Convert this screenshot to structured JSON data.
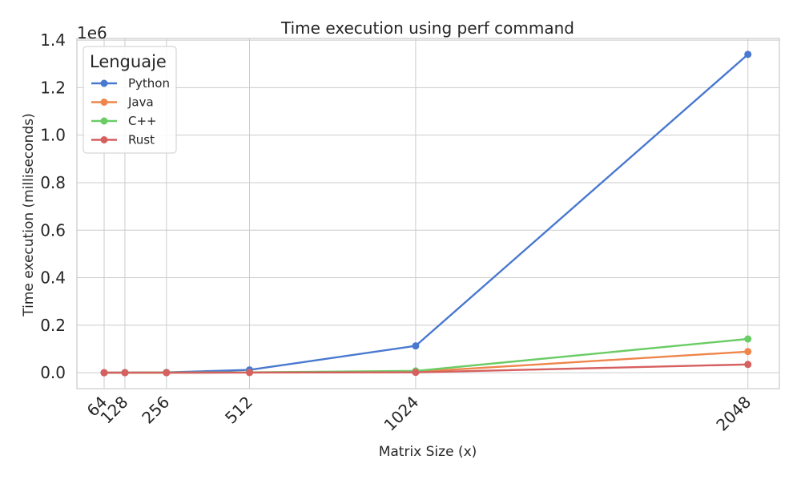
{
  "chart_data": {
    "type": "line",
    "title": "Time execution using perf command",
    "xlabel": "Matrix Size (x)",
    "ylabel": "Time execution (milliseconds)",
    "y_offset_label": "1e6",
    "x": [
      64,
      128,
      256,
      512,
      1024,
      2048
    ],
    "x_tick_labels": [
      "64",
      "128",
      "256",
      "512",
      "1024",
      "2048"
    ],
    "xlim": [
      -20,
      2145
    ],
    "ylim": [
      -0.067,
      1.407
    ],
    "y_scale_factor": 1000000,
    "y_ticks": [
      0.0,
      0.2,
      0.4,
      0.6,
      0.8,
      1.0,
      1.2,
      1.4
    ],
    "y_tick_labels": [
      "0.0",
      "0.2",
      "0.4",
      "0.6",
      "0.8",
      "1.0",
      "1.2",
      "1.4"
    ],
    "grid": true,
    "legend": {
      "title": "Lenguaje",
      "position": "top-left"
    },
    "series": [
      {
        "name": "Python",
        "color": "#4878d0",
        "values": [
          100,
          800,
          1500,
          12000,
          113000,
          1340000
        ]
      },
      {
        "name": "Java",
        "color": "#ee854a",
        "values": [
          50,
          100,
          300,
          1500,
          3500,
          89000
        ]
      },
      {
        "name": "C++",
        "color": "#6acc64",
        "values": [
          50,
          100,
          300,
          1500,
          7500,
          142000
        ]
      },
      {
        "name": "Rust",
        "color": "#d65f5f",
        "values": [
          20,
          50,
          150,
          700,
          1500,
          35000
        ]
      }
    ]
  }
}
